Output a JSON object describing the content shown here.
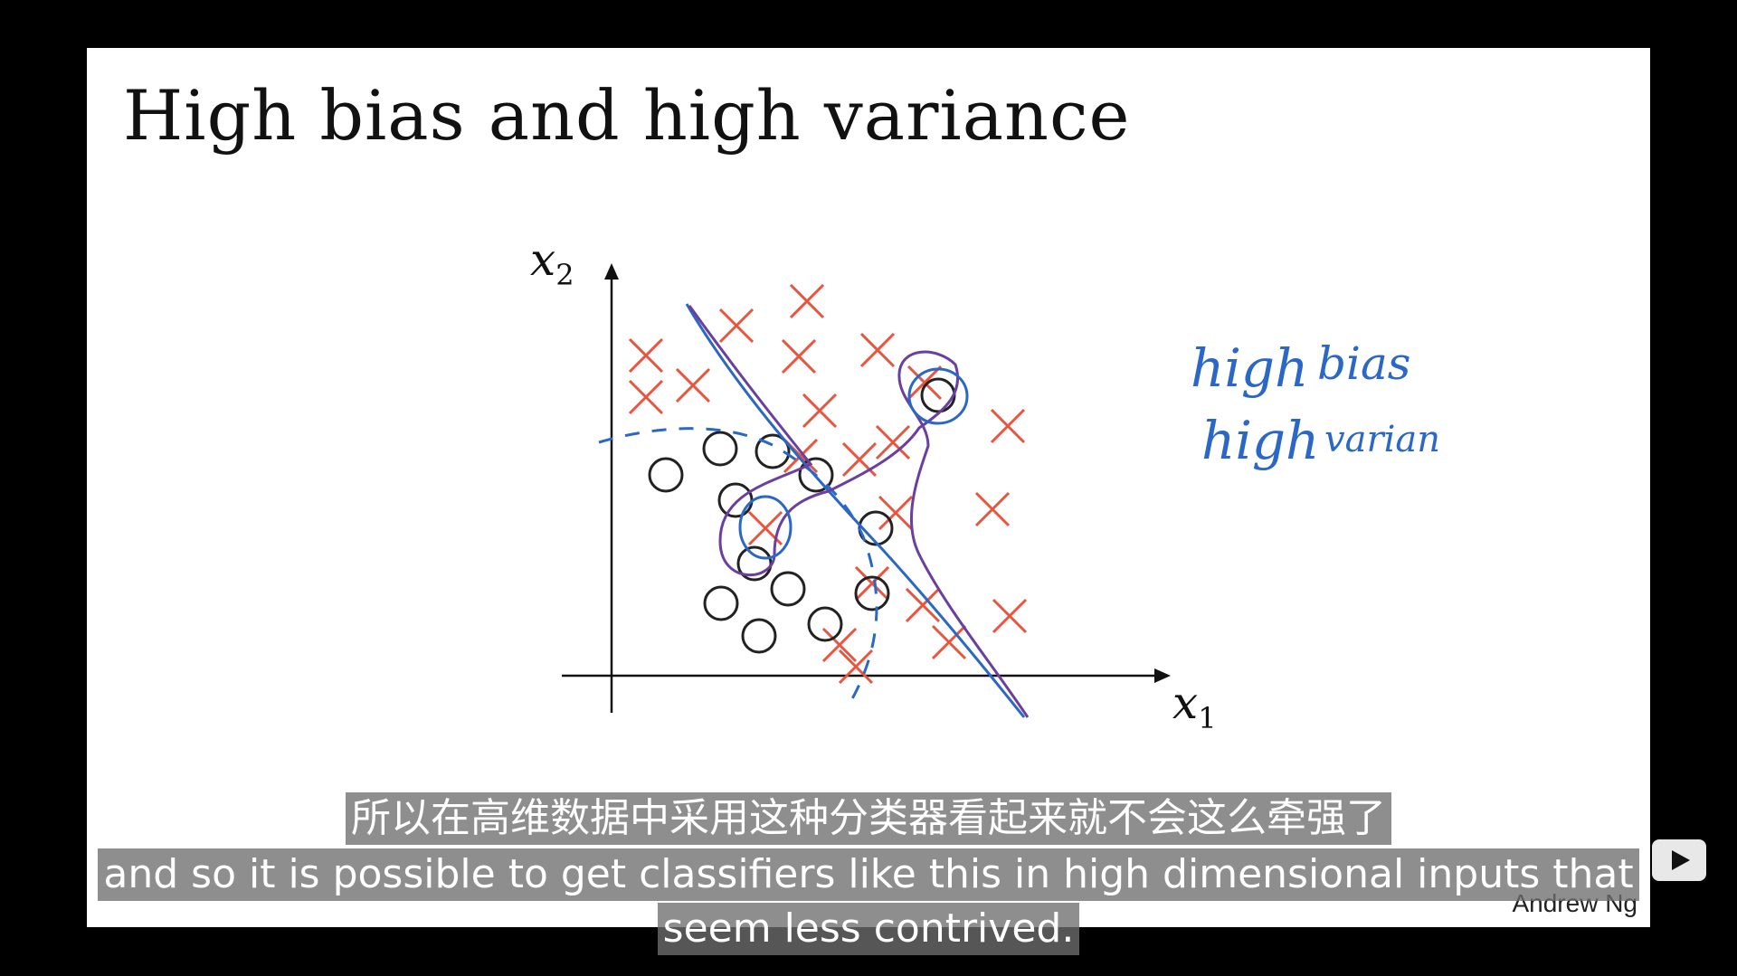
{
  "slide": {
    "title": "High bias and high variance",
    "watermark": "Andrew Ng"
  },
  "axes": {
    "x_label": "x",
    "x_sub": "1",
    "y_label": "x",
    "y_sub": "2"
  },
  "annotations": {
    "line1_word1": "high",
    "line1_word2": "bias",
    "line2_word1": "high",
    "line2_word2": "varian"
  },
  "subtitles": {
    "chinese": "所以在高维数据中采用这种分类器看起来就不会这么牵强了",
    "english_line1": "and so it is possible to get classifiers like this in high dimensional inputs that",
    "english_line2": "seem less contrived."
  },
  "colors": {
    "cross": "#e8553f",
    "ink_blue": "#2a67c6",
    "ink_purple": "#6a3fa0",
    "circle": "#222222"
  },
  "icons": {
    "play": "play-icon"
  }
}
